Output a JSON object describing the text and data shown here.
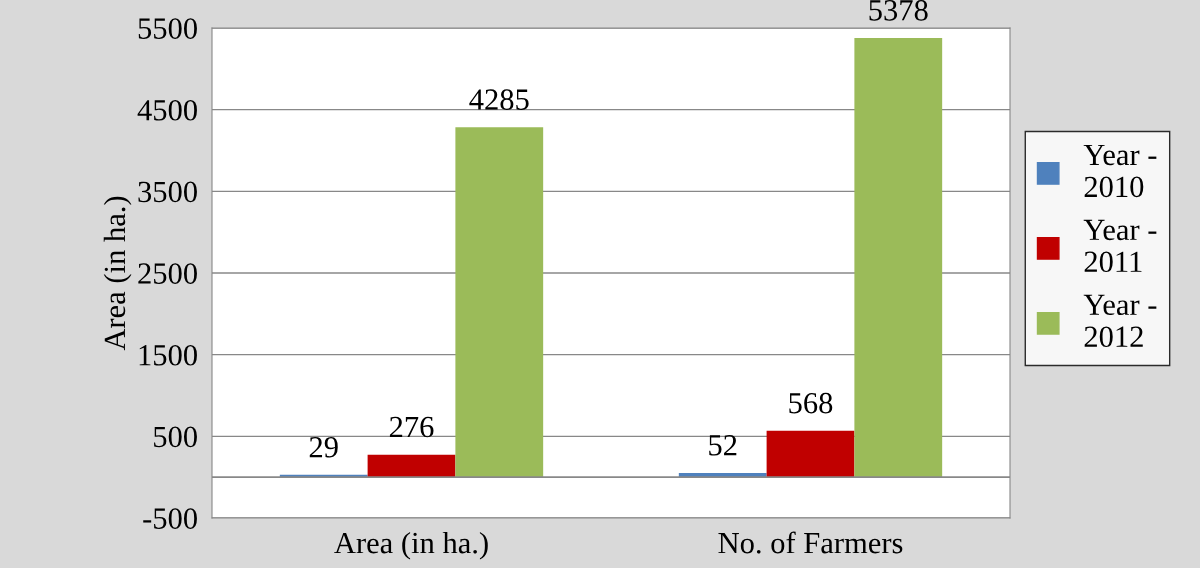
{
  "chart_data": {
    "type": "bar",
    "ylabel": "Area (in ha.)",
    "categories": [
      "Area (in ha.)",
      "No. of Farmers"
    ],
    "series": [
      {
        "name": "Year - 2010",
        "color": "#4f81bd",
        "values": [
          29,
          52
        ]
      },
      {
        "name": "Year - 2011",
        "color": "#c00000",
        "values": [
          276,
          568
        ]
      },
      {
        "name": "Year - 2012",
        "color": "#9bbb59",
        "values": [
          4285,
          5378
        ]
      }
    ],
    "ylim": [
      -500,
      5500
    ],
    "yticks": [
      -500,
      500,
      1500,
      2500,
      3500,
      4500,
      5500
    ],
    "grid": "y",
    "legend": "right",
    "data_labels": true
  }
}
